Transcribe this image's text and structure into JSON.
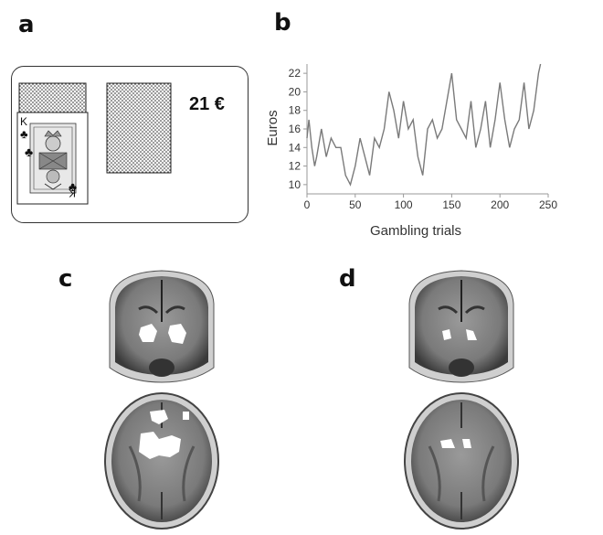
{
  "panels": {
    "a": "a",
    "b": "b",
    "c": "c",
    "d": "d"
  },
  "card_panel": {
    "amount": "21 €",
    "card_rank": "K",
    "card_suit": "♣"
  },
  "chart_data": {
    "type": "line",
    "title": "",
    "xlabel": "Gambling trials",
    "ylabel": "Euros",
    "xlim": [
      0,
      250
    ],
    "ylim": [
      9,
      23
    ],
    "xticks": [
      0,
      50,
      100,
      150,
      200,
      250
    ],
    "yticks": [
      10,
      12,
      14,
      16,
      18,
      20,
      22
    ],
    "grid": false,
    "series": [
      {
        "name": "",
        "x": [
          0,
          2,
          5,
          8,
          10,
          15,
          20,
          25,
          30,
          35,
          40,
          45,
          50,
          55,
          60,
          65,
          70,
          75,
          80,
          85,
          90,
          95,
          100,
          105,
          110,
          115,
          120,
          125,
          130,
          135,
          140,
          145,
          150,
          155,
          160,
          165,
          170,
          175,
          180,
          185,
          190,
          195,
          200,
          205,
          210,
          215,
          220,
          225,
          230,
          235,
          240,
          242
        ],
        "y": [
          15,
          17,
          14,
          12,
          13,
          16,
          13,
          15,
          14,
          14,
          11,
          10,
          12,
          15,
          13,
          11,
          15,
          14,
          16,
          20,
          18,
          15,
          19,
          16,
          17,
          13,
          11,
          16,
          17,
          15,
          16,
          19,
          22,
          17,
          16,
          15,
          19,
          14,
          16,
          19,
          14,
          17,
          21,
          17,
          14,
          16,
          17,
          21,
          16,
          18,
          22,
          23
        ]
      }
    ],
    "line_color": "#7a7a7a"
  },
  "brain_slices": [
    {
      "panel": "c",
      "view": "coronal",
      "activation": "bilateral"
    },
    {
      "panel": "c",
      "view": "axial",
      "activation": "large"
    },
    {
      "panel": "d",
      "view": "coronal",
      "activation": "small"
    },
    {
      "panel": "d",
      "view": "axial",
      "activation": "small"
    }
  ]
}
